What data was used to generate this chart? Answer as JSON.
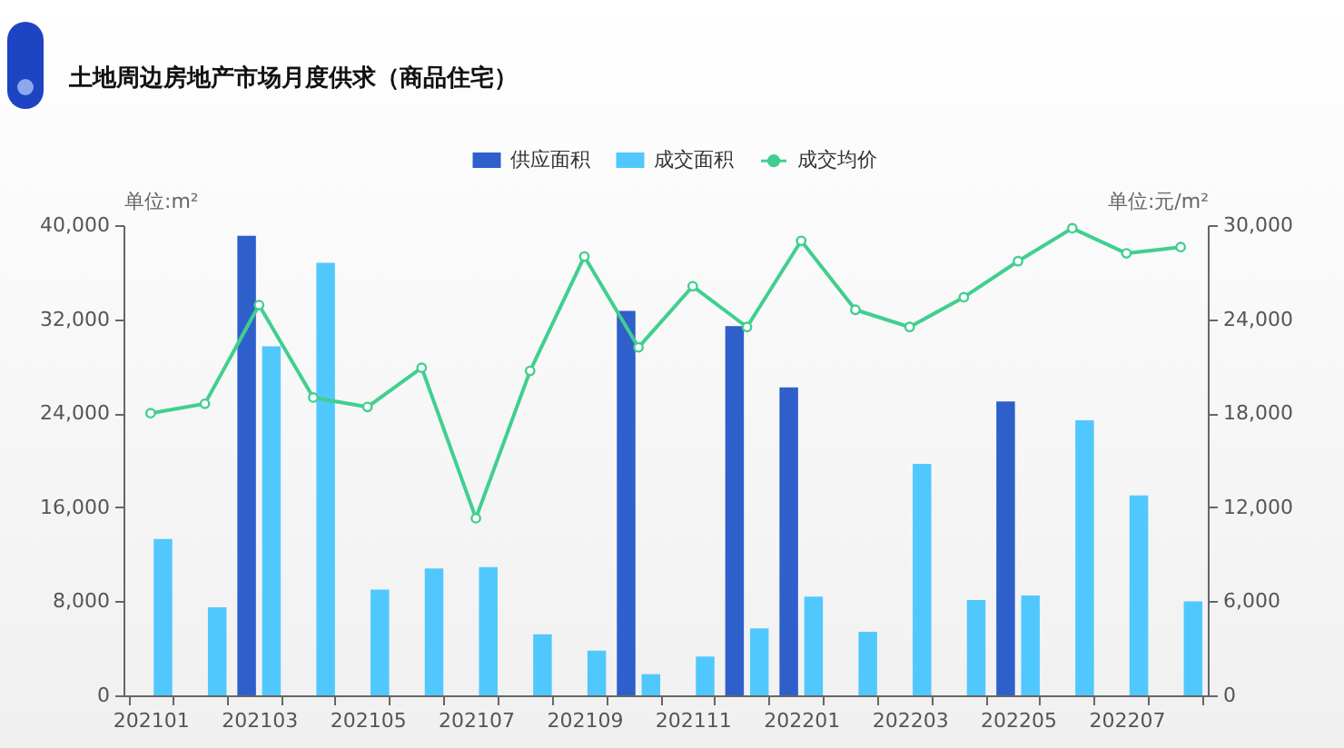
{
  "chart_data": {
    "type": "bar",
    "title": "土地周边房地产市场月度供求（商品住宅）",
    "ylabel": "单位:m²",
    "y2label": "单位:元/m²",
    "categories": [
      "202101",
      null,
      "202103",
      null,
      "202105",
      null,
      "202107",
      null,
      "202109",
      null,
      "202111",
      null,
      "202201",
      null,
      "202203",
      null,
      "202205",
      null,
      "202207",
      null
    ],
    "series": [
      {
        "name": "供应面积",
        "color": "#2e5fcb",
        "values": [
          null,
          null,
          39100,
          null,
          null,
          null,
          null,
          null,
          null,
          32700,
          null,
          31400,
          26200,
          null,
          null,
          null,
          25000,
          null,
          null,
          null
        ]
      },
      {
        "name": "成交面积",
        "color": "#50c8fd",
        "values": [
          13300,
          7500,
          29700,
          36800,
          9000,
          10800,
          10900,
          5200,
          3800,
          1800,
          3300,
          5700,
          8400,
          5400,
          19700,
          8100,
          8500,
          23400,
          17000,
          8000
        ]
      },
      {
        "name": "成交均价",
        "type": "line",
        "axis": "y2",
        "color": "#40cf8f",
        "values": [
          18000,
          18600,
          24900,
          19000,
          18400,
          20900,
          11300,
          20700,
          28000,
          22200,
          26100,
          23500,
          29000,
          24600,
          23500,
          25400,
          27700,
          29800,
          28200,
          28600
        ]
      }
    ],
    "ylim": [
      0,
      40000
    ],
    "yticks": [
      0,
      {
        "value": 8000,
        "label": "8,000"
      },
      {
        "value": 16000,
        "label": "16,000"
      },
      {
        "value": 24000,
        "label": "24,000"
      },
      {
        "value": 32000,
        "label": "32,000"
      },
      {
        "value": 40000,
        "label": "40,000"
      }
    ],
    "y2lim": [
      0,
      30000
    ],
    "y2ticks": [
      0,
      {
        "value": 6000,
        "label": "6,000"
      },
      {
        "value": 12000,
        "label": "12,000"
      },
      {
        "value": 18000,
        "label": "18,000"
      },
      {
        "value": 24000,
        "label": "24,000"
      },
      {
        "value": 30000,
        "label": "30,000"
      }
    ],
    "legend": "top",
    "marker": "circle"
  }
}
